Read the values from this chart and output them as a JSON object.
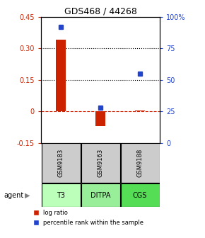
{
  "title": "GDS468 / 44268",
  "samples": [
    "GSM9183",
    "GSM9163",
    "GSM9188"
  ],
  "agents": [
    "T3",
    "DITPA",
    "CGS"
  ],
  "log_ratios": [
    0.34,
    -0.07,
    0.005
  ],
  "percentile_ranks": [
    92,
    28,
    55
  ],
  "bar_color": "#cc2200",
  "dot_color": "#2244cc",
  "ylim_left": [
    -0.15,
    0.45
  ],
  "ylim_right": [
    0,
    100
  ],
  "yticks_left": [
    -0.15,
    0,
    0.15,
    0.3,
    0.45
  ],
  "ytick_labels_left": [
    "-0.15",
    "0",
    "0.15",
    "0.30",
    "0.45"
  ],
  "yticks_right": [
    0,
    25,
    50,
    75,
    100
  ],
  "ytick_labels_right": [
    "0",
    "25",
    "50",
    "75",
    "100%"
  ],
  "hlines": [
    0.15,
    0.3
  ],
  "agent_colors": [
    "#bbffbb",
    "#99ee99",
    "#55dd55"
  ],
  "sample_bg": "#cccccc",
  "legend_log_color": "#cc2200",
  "legend_pct_color": "#2244cc",
  "bar_width": 0.25
}
